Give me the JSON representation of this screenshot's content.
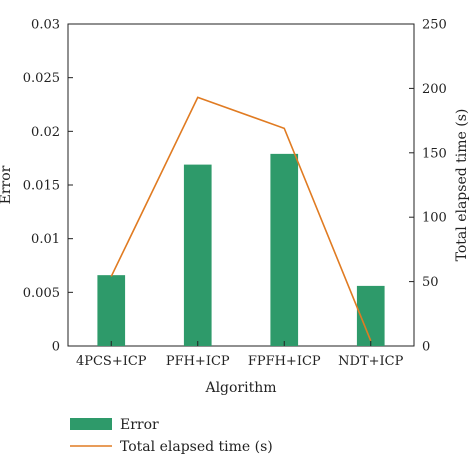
{
  "chart_data": {
    "type": "bar",
    "categories": [
      "4PCS+ICP",
      "PFH+ICP",
      "FPFH+ICP",
      "NDT+ICP"
    ],
    "xlabel": "Algorithm",
    "ylabel": "Error",
    "y2label": "Total elapsed time (s)",
    "ylim": [
      0,
      0.03
    ],
    "y2lim": [
      0,
      250
    ],
    "yticks": [
      "0",
      "0.005",
      "0.01",
      "0.015",
      "0.02",
      "0.025",
      "0.03"
    ],
    "y2ticks": [
      "0",
      "50",
      "100",
      "150",
      "200",
      "250"
    ],
    "series": [
      {
        "name": "Error",
        "kind": "bar",
        "axis": "left",
        "color": "#2e9a6a",
        "values": [
          0.0066,
          0.0169,
          0.0179,
          0.0056
        ]
      },
      {
        "name": "Total elapsed time (s)",
        "kind": "line",
        "axis": "right",
        "color": "#e07b22",
        "values": [
          54,
          193,
          169,
          4
        ]
      }
    ],
    "legend_position": "bottom-left",
    "grid": false
  }
}
